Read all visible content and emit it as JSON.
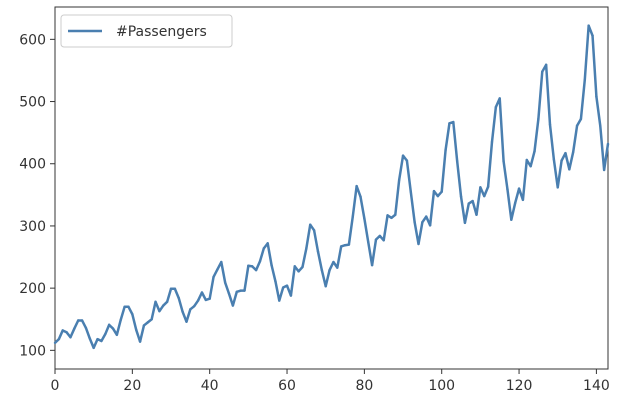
{
  "chart_data": {
    "type": "line",
    "x": [
      0,
      1,
      2,
      3,
      4,
      5,
      6,
      7,
      8,
      9,
      10,
      11,
      12,
      13,
      14,
      15,
      16,
      17,
      18,
      19,
      20,
      21,
      22,
      23,
      24,
      25,
      26,
      27,
      28,
      29,
      30,
      31,
      32,
      33,
      34,
      35,
      36,
      37,
      38,
      39,
      40,
      41,
      42,
      43,
      44,
      45,
      46,
      47,
      48,
      49,
      50,
      51,
      52,
      53,
      54,
      55,
      56,
      57,
      58,
      59,
      60,
      61,
      62,
      63,
      64,
      65,
      66,
      67,
      68,
      69,
      70,
      71,
      72,
      73,
      74,
      75,
      76,
      77,
      78,
      79,
      80,
      81,
      82,
      83,
      84,
      85,
      86,
      87,
      88,
      89,
      90,
      91,
      92,
      93,
      94,
      95,
      96,
      97,
      98,
      99,
      100,
      101,
      102,
      103,
      104,
      105,
      106,
      107,
      108,
      109,
      110,
      111,
      112,
      113,
      114,
      115,
      116,
      117,
      118,
      119,
      120,
      121,
      122,
      123,
      124,
      125,
      126,
      127,
      128,
      129,
      130,
      131,
      132,
      133,
      134,
      135,
      136,
      137,
      138,
      139,
      140,
      141,
      142,
      143
    ],
    "series": [
      {
        "name": "#Passengers",
        "color": "#4a7fb0",
        "values": [
          112,
          118,
          132,
          129,
          121,
          135,
          148,
          148,
          136,
          119,
          104,
          118,
          115,
          126,
          141,
          135,
          125,
          149,
          170,
          170,
          158,
          133,
          114,
          140,
          145,
          150,
          178,
          163,
          172,
          178,
          199,
          199,
          184,
          162,
          146,
          166,
          171,
          180,
          193,
          181,
          183,
          218,
          230,
          242,
          209,
          191,
          172,
          194,
          196,
          196,
          236,
          235,
          229,
          243,
          264,
          272,
          237,
          211,
          180,
          201,
          204,
          188,
          235,
          227,
          234,
          264,
          302,
          293,
          259,
          229,
          203,
          229,
          242,
          233,
          267,
          269,
          270,
          315,
          364,
          347,
          312,
          274,
          237,
          278,
          284,
          277,
          317,
          313,
          318,
          374,
          413,
          405,
          355,
          306,
          271,
          306,
          315,
          301,
          356,
          348,
          355,
          422,
          465,
          467,
          404,
          347,
          305,
          336,
          340,
          318,
          362,
          348,
          363,
          435,
          491,
          505,
          404,
          359,
          310,
          337,
          360,
          342,
          406,
          396,
          420,
          472,
          548,
          559,
          463,
          407,
          362,
          405,
          417,
          391,
          419,
          461,
          472,
          535,
          622,
          606,
          508,
          461,
          390,
          432
        ]
      }
    ],
    "xlim": [
      0,
      143
    ],
    "ylim": [
      70,
      652
    ],
    "xticks": [
      "0",
      "20",
      "40",
      "60",
      "80",
      "100",
      "120",
      "140"
    ],
    "yticks": [
      "100",
      "200",
      "300",
      "400",
      "500",
      "600"
    ],
    "legend_position": "top-left",
    "grid": false
  }
}
